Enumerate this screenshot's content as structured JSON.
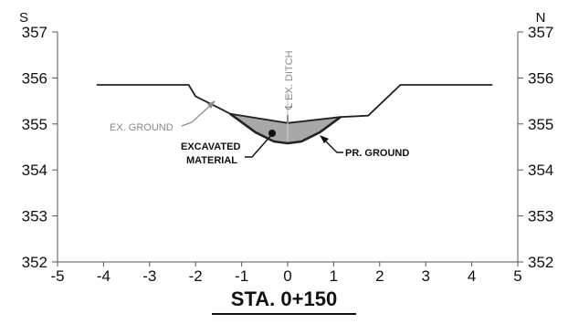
{
  "direction": {
    "left": "S",
    "right": "N"
  },
  "station_label": "STA. 0+150",
  "annotations": {
    "existing_ground": "EX. GROUND",
    "ditch_centerline": "℄ EX. DITCH",
    "excavated_material": [
      "EXCAVATED",
      "MATERIAL"
    ],
    "proposed_ground": "PR. GROUND"
  },
  "colors": {
    "fill": "#a8a8a8",
    "line": "#222222",
    "leader_gray": "#8a8a8a"
  },
  "chart_data": {
    "type": "line",
    "x_ticks": [
      -5,
      -4,
      -3,
      -2,
      -1,
      0,
      1,
      2,
      3,
      4,
      5
    ],
    "y_ticks": [
      352,
      353,
      354,
      355,
      356,
      357
    ],
    "xlim": [
      -5,
      5
    ],
    "ylim": [
      352,
      357
    ],
    "grid": false,
    "series": [
      {
        "name": "EX. GROUND",
        "points": [
          [
            -4.15,
            355.85
          ],
          [
            -2.15,
            355.85
          ],
          [
            -2.0,
            355.6
          ],
          [
            -1.4,
            355.3
          ],
          [
            -1.25,
            355.22
          ],
          [
            0,
            355.02
          ],
          [
            1.15,
            355.15
          ],
          [
            1.75,
            355.18
          ],
          [
            2.45,
            355.85
          ],
          [
            4.45,
            355.85
          ]
        ]
      },
      {
        "name": "PR. GROUND",
        "points": [
          [
            -1.25,
            355.22
          ],
          [
            -0.7,
            354.82
          ],
          [
            -0.3,
            354.62
          ],
          [
            0,
            354.58
          ],
          [
            0.3,
            354.62
          ],
          [
            0.7,
            354.82
          ],
          [
            1.15,
            355.15
          ]
        ]
      }
    ]
  }
}
